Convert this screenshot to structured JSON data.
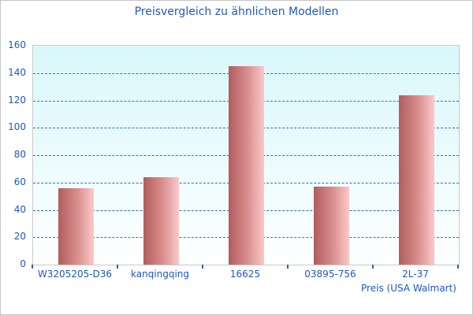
{
  "chart_data": {
    "type": "bar",
    "title": "Preisvergleich zu ähnlichen Modellen",
    "xlabel": "Preis (USA Walmart)",
    "ylabel": "",
    "categories": [
      "W3205205-D36",
      "kanqingqing",
      "16625",
      "03895-756",
      "2L-37"
    ],
    "values": [
      56,
      64,
      145,
      57,
      124
    ],
    "ylim": [
      0,
      160
    ],
    "ytick_step": 20,
    "grid": true,
    "legend": false,
    "colors": {
      "text": "#1d57c8",
      "gridline": "#3c68c8",
      "bar_gradient_left": "#b25c5c",
      "bar_gradient_right": "#fcc9c9",
      "plot_bg_top": "#d9f8fb",
      "plot_bg_bottom": "#feffff",
      "plot_border": "#c9c9c9",
      "canvas_border": "#c6c6c6"
    }
  }
}
